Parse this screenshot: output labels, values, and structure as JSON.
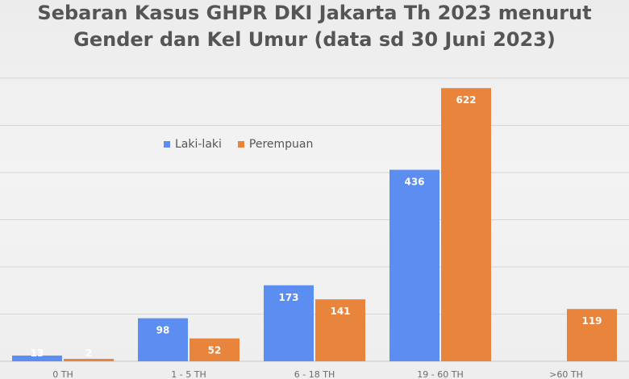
{
  "chart_data": {
    "type": "bar",
    "title": "Sebaran Kasus GHPR DKI Jakarta Th 2023 menurut Gender dan Kel Umur (data sd 30 Juni 2023)",
    "title_lines": [
      "Sebaran Kasus GHPR DKI Jakarta Th 2023 menurut",
      "Gender dan Kel Umur (data sd 30 Juni 2023)"
    ],
    "categories": [
      "0 TH",
      "1 - 5 TH",
      "6 - 18 TH",
      "19 - 60 TH",
      ">60 TH"
    ],
    "series": [
      {
        "name": "Laki-laki",
        "values": [
          13,
          98,
          173,
          436,
          null
        ],
        "color": "#5b8ef0"
      },
      {
        "name": "Perempuan",
        "values": [
          2,
          52,
          141,
          622,
          119
        ],
        "color": "#e8843c"
      }
    ],
    "ylim": [
      0,
      650
    ],
    "grid": true,
    "legend_position": "top-left"
  }
}
